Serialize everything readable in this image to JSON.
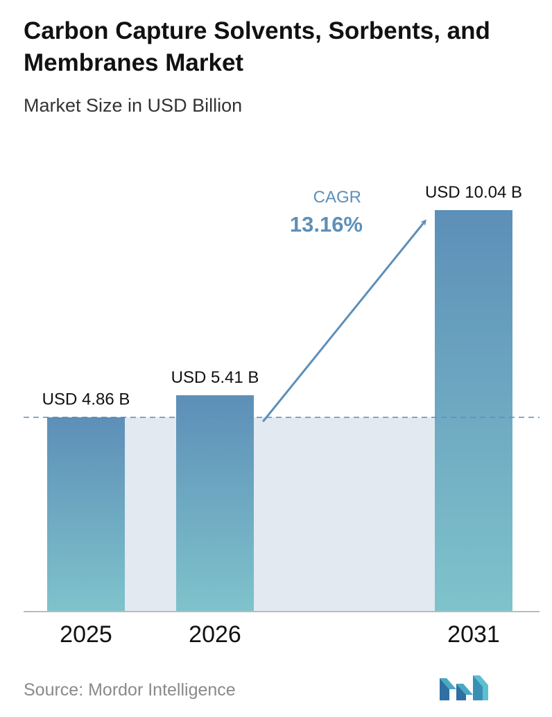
{
  "header": {
    "title": "Carbon Capture Solvents, Sorbents, and Membranes Market",
    "subtitle": "Market Size in USD Billion"
  },
  "chart_data": {
    "type": "bar",
    "title": "Carbon Capture Solvents, Sorbents, and Membranes Market",
    "subtitle": "Market Size in USD Billion",
    "xlabel": "",
    "ylabel": "",
    "categories": [
      "2025",
      "2026",
      "2031"
    ],
    "values": [
      4.86,
      5.41,
      10.04
    ],
    "value_labels": [
      "USD 4.86 B",
      "USD 5.41 B",
      "USD 10.04 B"
    ],
    "ylim": [
      0,
      10.04
    ],
    "grid": false,
    "reference_line": 4.86,
    "annotation": {
      "label": "CAGR",
      "value": "13.16%"
    }
  },
  "colors": {
    "bar_top": "#5d8fb8",
    "bar_bottom": "#7fc3cb",
    "band": "#e2e9f1",
    "arrow": "#5d8fb8",
    "cagr_text": "#5d8fb8",
    "baseline": "#bbbbbb",
    "dashed_line": "#5d8fb8"
  },
  "footer": {
    "source": "Source: Mordor Intelligence",
    "logo_icon": "mordor-intelligence-logo-icon"
  }
}
